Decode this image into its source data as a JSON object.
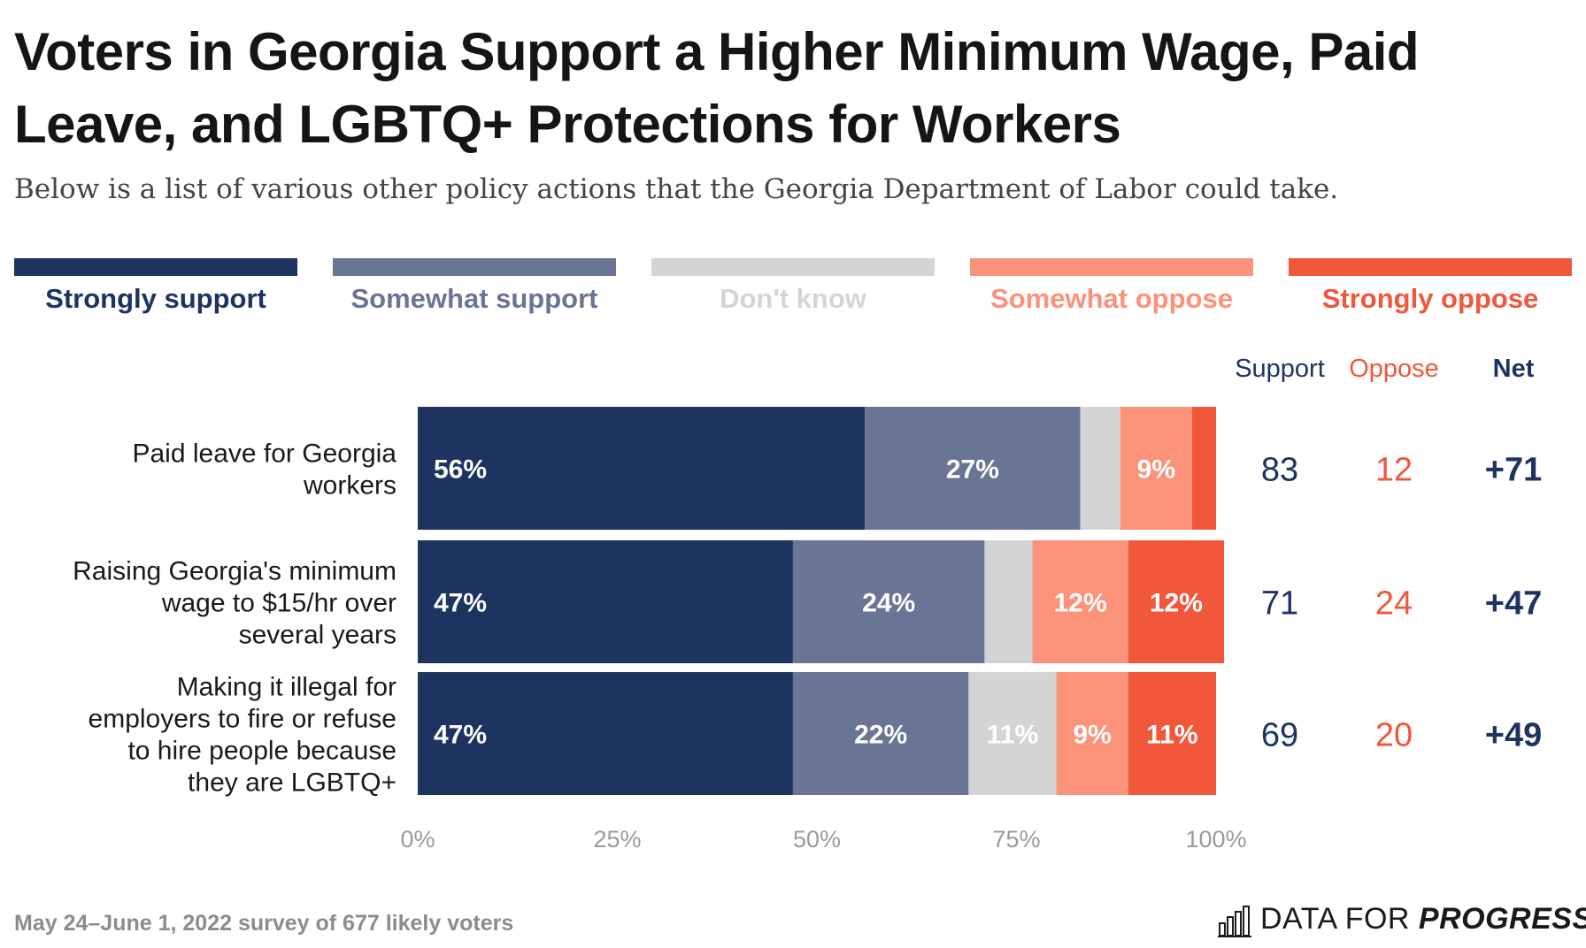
{
  "title": "Voters in Georgia Support a Higher Minimum Wage, Paid Leave, and LGBTQ+ Protections for Workers",
  "subtitle": "Below is a list of various other policy actions that the Georgia Department of Labor could take.",
  "footer": {
    "note": "May 24–June 1, 2022 survey of 677 likely voters",
    "logo_regular": "DATA FOR ",
    "logo_bold": "PROGRESS",
    "logo_icon": "bar-chart-icon"
  },
  "colors": {
    "strongly_support": "#1d3461",
    "somewhat_support": "#6a7495",
    "dont_know": "#d3d4d6",
    "somewhat_oppose": "#fb927a",
    "strongly_oppose": "#f0573b"
  },
  "chart_data": {
    "type": "bar",
    "orientation": "horizontal",
    "stacked": true,
    "categories": [
      "Paid leave for Georgia workers",
      "Raising Georgia's minimum wage to $15/hr over several years",
      "Making it illegal for employers to fire or refuse to hire people because they are LGBTQ+"
    ],
    "category_lines": [
      [
        "Paid leave for Georgia",
        "workers"
      ],
      [
        "Raising Georgia's minimum",
        "wage to $15/hr over",
        "several years"
      ],
      [
        "Making it illegal for",
        "employers to fire or refuse",
        "to hire people because",
        "they are LGBTQ+"
      ]
    ],
    "series": [
      {
        "name": "Strongly support",
        "values": [
          56,
          47,
          47
        ],
        "labels": [
          "56%",
          "47%",
          "47%"
        ]
      },
      {
        "name": "Somewhat support",
        "values": [
          27,
          24,
          22
        ],
        "labels": [
          "27%",
          "24%",
          "22%"
        ]
      },
      {
        "name": "Don't know",
        "values": [
          5,
          6,
          11
        ],
        "labels": [
          "",
          "",
          "11%"
        ]
      },
      {
        "name": "Somewhat oppose",
        "values": [
          9,
          12,
          9
        ],
        "labels": [
          "9%",
          "12%",
          "9%"
        ]
      },
      {
        "name": "Strongly oppose",
        "values": [
          3,
          12,
          11
        ],
        "labels": [
          "",
          "12%",
          "11%"
        ]
      }
    ],
    "summary_columns": [
      "Support",
      "Oppose",
      "Net"
    ],
    "summary": {
      "support": [
        "83",
        "71",
        "69"
      ],
      "oppose": [
        "12",
        "24",
        "20"
      ],
      "net": [
        "+71",
        "+47",
        "+49"
      ]
    },
    "xlim": [
      0,
      100
    ],
    "xticks": [
      0,
      25,
      50,
      75,
      100
    ],
    "xtick_labels": [
      "0%",
      "25%",
      "50%",
      "75%",
      "100%"
    ],
    "legend_position": "top",
    "grid": false
  }
}
